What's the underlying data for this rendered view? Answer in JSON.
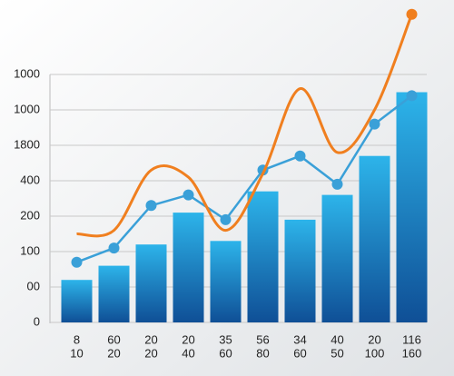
{
  "chart_data": {
    "type": "combo",
    "categories": [
      [
        "8",
        "10"
      ],
      [
        "60",
        "20"
      ],
      [
        "20",
        "20"
      ],
      [
        "20",
        "40"
      ],
      [
        "35",
        "60"
      ],
      [
        "56",
        "80"
      ],
      [
        "34",
        "60"
      ],
      [
        "40",
        "50"
      ],
      [
        "20",
        "100"
      ],
      [
        "116",
        "160"
      ]
    ],
    "ylim": [
      0,
      7
    ],
    "yticks": [
      0,
      {
        "value": 1,
        "label": "00"
      },
      {
        "value": 2,
        "label": "100"
      },
      {
        "value": 3,
        "label": "200"
      },
      {
        "value": 4,
        "label": "400"
      },
      {
        "value": 5,
        "label": "1800"
      },
      {
        "value": 6,
        "label": "1000"
      },
      {
        "value": 7,
        "label": "1000"
      }
    ],
    "grid": true,
    "series": [
      {
        "type": "bar",
        "color": "#1f86cc",
        "values": [
          1.2,
          1.6,
          2.2,
          3.1,
          2.3,
          3.7,
          2.9,
          3.6,
          4.7,
          6.5
        ]
      },
      {
        "type": "line",
        "color": "#3aa0d8",
        "markers": true,
        "values": [
          1.7,
          2.1,
          3.3,
          3.6,
          2.9,
          4.3,
          4.7,
          3.9,
          5.6,
          6.4
        ]
      },
      {
        "type": "curve",
        "color": "#f07f1f",
        "values": [
          2.5,
          2.6,
          4.3,
          4.1,
          2.6,
          4.2,
          6.6,
          4.8,
          6.0,
          8.7
        ]
      }
    ]
  }
}
